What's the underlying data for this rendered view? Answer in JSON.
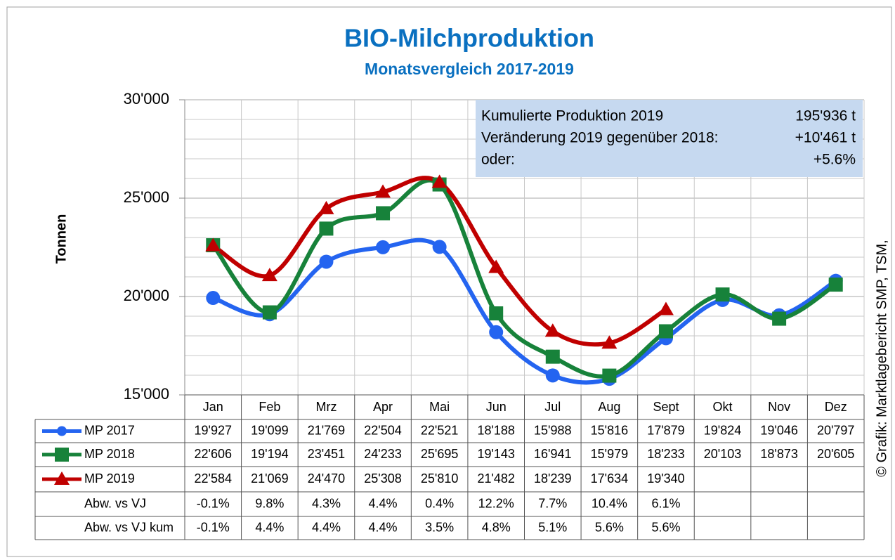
{
  "chart_data": {
    "type": "line",
    "title": "BIO-Milchproduktion",
    "subtitle": "Monatsvergleich 2017-2019",
    "y_label": "Tonnen",
    "source": "© Grafik: Marktlagebericht SMP, TSM,",
    "categories": [
      "Jan",
      "Feb",
      "Mrz",
      "Apr",
      "Mai",
      "Jun",
      "Jul",
      "Aug",
      "Sept",
      "Okt",
      "Nov",
      "Dez"
    ],
    "ylim": [
      15000,
      30000
    ],
    "yticks": [
      {
        "value": 15000,
        "label": "15'000"
      },
      {
        "value": 20000,
        "label": "20'000"
      },
      {
        "value": 25000,
        "label": "25'000"
      },
      {
        "value": 30000,
        "label": "30'000"
      }
    ],
    "minor_yticks": [
      16000,
      17000,
      18000,
      19000,
      21000,
      22000,
      23000,
      24000,
      26000,
      27000,
      28000,
      29000
    ],
    "grid": true,
    "series": [
      {
        "name": "MP 2017",
        "color": "#2464f0",
        "marker": "circle",
        "values": [
          19927,
          19099,
          21769,
          22504,
          22521,
          18188,
          15988,
          15816,
          17879,
          19824,
          19046,
          20797
        ],
        "value_labels": [
          "19'927",
          "19'099",
          "21'769",
          "22'504",
          "22'521",
          "18'188",
          "15'988",
          "15'816",
          "17'879",
          "19'824",
          "19'046",
          "20'797"
        ]
      },
      {
        "name": "MP 2018",
        "color": "#17823a",
        "marker": "square",
        "values": [
          22606,
          19194,
          23451,
          24233,
          25695,
          19143,
          16941,
          15979,
          18233,
          20103,
          18873,
          20605
        ],
        "value_labels": [
          "22'606",
          "19'194",
          "23'451",
          "24'233",
          "25'695",
          "19'143",
          "16'941",
          "15'979",
          "18'233",
          "20'103",
          "18'873",
          "20'605"
        ]
      },
      {
        "name": "MP 2019",
        "color": "#c00000",
        "marker": "triangle",
        "values": [
          22584,
          21069,
          24470,
          25308,
          25810,
          21482,
          18239,
          17634,
          19340,
          null,
          null,
          null
        ],
        "value_labels": [
          "22'584",
          "21'069",
          "24'470",
          "25'308",
          "25'810",
          "21'482",
          "18'239",
          "17'634",
          "19'340",
          null,
          null,
          null
        ]
      }
    ],
    "table_rows": [
      {
        "name": "Abw. vs VJ",
        "cells": [
          "-0.1%",
          "9.8%",
          "4.3%",
          "4.4%",
          "0.4%",
          "12.2%",
          "7.7%",
          "10.4%",
          "6.1%",
          null,
          null,
          null
        ]
      },
      {
        "name": "Abw. vs VJ kum",
        "cells": [
          "-0.1%",
          "4.4%",
          "4.4%",
          "4.4%",
          "3.5%",
          "4.8%",
          "5.1%",
          "5.6%",
          "5.6%",
          null,
          null,
          null
        ]
      }
    ],
    "info_box": [
      {
        "label": "Kumulierte Produktion 2019",
        "value": "195'936 t"
      },
      {
        "label": "Veränderung 2019 gegenüber 2018:",
        "value": "+10'461 t"
      },
      {
        "label": "oder:",
        "value": "+5.6%"
      }
    ]
  }
}
